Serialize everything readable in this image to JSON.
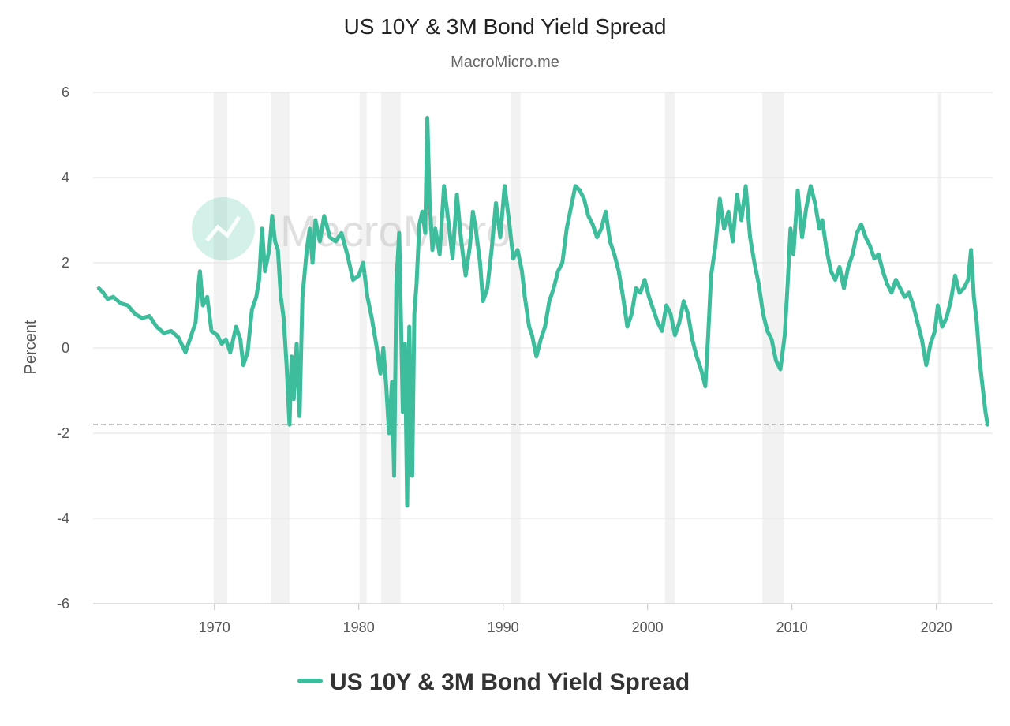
{
  "chart_data": {
    "type": "line",
    "title": "US 10Y & 3M Bond Yield Spread",
    "subtitle": "MacroMicro.me",
    "watermark": "MacroMicro",
    "ylabel": "Percent",
    "xlabel": "",
    "ylim": [
      -6,
      6
    ],
    "xlim": [
      1961.6,
      2023.9
    ],
    "yticks": [
      "6",
      "4",
      "2",
      "0",
      "-2",
      "-4",
      "-6"
    ],
    "xticks": [
      "1970",
      "1980",
      "1990",
      "2000",
      "2010",
      "2020"
    ],
    "grid": true,
    "legend_position": "bottom-center",
    "reference_line": -1.8,
    "recessions": [
      [
        1969.95,
        1970.9
      ],
      [
        1973.9,
        1975.2
      ],
      [
        1980.05,
        1980.55
      ],
      [
        1981.55,
        1982.9
      ],
      [
        1990.55,
        1991.2
      ],
      [
        2001.2,
        2001.9
      ],
      [
        2007.95,
        2009.45
      ],
      [
        2020.1,
        2020.35
      ]
    ],
    "colors": {
      "series": "#3dbd9b",
      "recession": "#f2f2f2",
      "grid": "#e6e6e6",
      "reference": "#888888"
    },
    "series": [
      {
        "name": "US 10Y & 3M Bond Yield Spread",
        "points": [
          [
            1962.0,
            1.4
          ],
          [
            1962.3,
            1.3
          ],
          [
            1962.6,
            1.15
          ],
          [
            1963.0,
            1.2
          ],
          [
            1963.5,
            1.05
          ],
          [
            1964.0,
            1.0
          ],
          [
            1964.5,
            0.8
          ],
          [
            1965.0,
            0.7
          ],
          [
            1965.5,
            0.75
          ],
          [
            1966.0,
            0.5
          ],
          [
            1966.5,
            0.35
          ],
          [
            1967.0,
            0.4
          ],
          [
            1967.5,
            0.25
          ],
          [
            1968.0,
            -0.1
          ],
          [
            1968.3,
            0.2
          ],
          [
            1968.7,
            0.6
          ],
          [
            1968.9,
            1.5
          ],
          [
            1969.0,
            1.8
          ],
          [
            1969.2,
            1.0
          ],
          [
            1969.5,
            1.2
          ],
          [
            1969.8,
            0.4
          ],
          [
            1970.2,
            0.3
          ],
          [
            1970.5,
            0.1
          ],
          [
            1970.8,
            0.2
          ],
          [
            1971.1,
            -0.1
          ],
          [
            1971.5,
            0.5
          ],
          [
            1971.8,
            0.2
          ],
          [
            1972.0,
            -0.4
          ],
          [
            1972.3,
            -0.1
          ],
          [
            1972.6,
            0.9
          ],
          [
            1972.9,
            1.2
          ],
          [
            1973.1,
            1.6
          ],
          [
            1973.3,
            2.8
          ],
          [
            1973.5,
            1.8
          ],
          [
            1973.8,
            2.3
          ],
          [
            1974.0,
            3.1
          ],
          [
            1974.2,
            2.5
          ],
          [
            1974.4,
            2.3
          ],
          [
            1974.6,
            1.2
          ],
          [
            1974.8,
            0.7
          ],
          [
            1975.0,
            -0.4
          ],
          [
            1975.2,
            -1.8
          ],
          [
            1975.35,
            -0.2
          ],
          [
            1975.5,
            -1.2
          ],
          [
            1975.7,
            0.1
          ],
          [
            1975.9,
            -1.6
          ],
          [
            1976.1,
            1.2
          ],
          [
            1976.4,
            2.3
          ],
          [
            1976.6,
            2.8
          ],
          [
            1976.8,
            2.0
          ],
          [
            1977.0,
            3.0
          ],
          [
            1977.3,
            2.5
          ],
          [
            1977.6,
            3.1
          ],
          [
            1978.0,
            2.6
          ],
          [
            1978.4,
            2.5
          ],
          [
            1978.8,
            2.7
          ],
          [
            1979.2,
            2.2
          ],
          [
            1979.6,
            1.6
          ],
          [
            1980.0,
            1.7
          ],
          [
            1980.3,
            2.0
          ],
          [
            1980.6,
            1.2
          ],
          [
            1980.9,
            0.7
          ],
          [
            1981.2,
            0.1
          ],
          [
            1981.5,
            -0.6
          ],
          [
            1981.7,
            0.0
          ],
          [
            1981.9,
            -0.9
          ],
          [
            1982.1,
            -2.0
          ],
          [
            1982.3,
            -0.8
          ],
          [
            1982.45,
            -3.0
          ],
          [
            1982.6,
            1.5
          ],
          [
            1982.8,
            2.7
          ],
          [
            1982.95,
            0.2
          ],
          [
            1983.05,
            -1.5
          ],
          [
            1983.2,
            0.1
          ],
          [
            1983.35,
            -3.7
          ],
          [
            1983.5,
            0.5
          ],
          [
            1983.7,
            -3.0
          ],
          [
            1983.85,
            0.8
          ],
          [
            1984.0,
            1.5
          ],
          [
            1984.2,
            2.9
          ],
          [
            1984.4,
            3.2
          ],
          [
            1984.6,
            2.7
          ],
          [
            1984.75,
            5.4
          ],
          [
            1984.9,
            3.5
          ],
          [
            1985.1,
            2.3
          ],
          [
            1985.3,
            2.8
          ],
          [
            1985.6,
            2.2
          ],
          [
            1985.9,
            3.8
          ],
          [
            1986.2,
            3.0
          ],
          [
            1986.5,
            2.1
          ],
          [
            1986.8,
            3.6
          ],
          [
            1987.1,
            2.5
          ],
          [
            1987.4,
            1.7
          ],
          [
            1987.7,
            2.4
          ],
          [
            1987.9,
            3.2
          ],
          [
            1988.1,
            2.8
          ],
          [
            1988.4,
            2.0
          ],
          [
            1988.6,
            1.1
          ],
          [
            1988.9,
            1.4
          ],
          [
            1989.2,
            2.3
          ],
          [
            1989.5,
            3.4
          ],
          [
            1989.8,
            2.6
          ],
          [
            1990.1,
            3.8
          ],
          [
            1990.4,
            3.0
          ],
          [
            1990.7,
            2.1
          ],
          [
            1991.0,
            2.3
          ],
          [
            1991.3,
            1.8
          ],
          [
            1991.5,
            1.2
          ],
          [
            1991.8,
            0.5
          ],
          [
            1992.0,
            0.3
          ],
          [
            1992.3,
            -0.2
          ],
          [
            1992.6,
            0.2
          ],
          [
            1992.9,
            0.5
          ],
          [
            1993.2,
            1.1
          ],
          [
            1993.5,
            1.4
          ],
          [
            1993.8,
            1.8
          ],
          [
            1994.1,
            2.0
          ],
          [
            1994.4,
            2.8
          ],
          [
            1994.7,
            3.3
          ],
          [
            1995.0,
            3.8
          ],
          [
            1995.3,
            3.7
          ],
          [
            1995.6,
            3.5
          ],
          [
            1995.9,
            3.1
          ],
          [
            1996.2,
            2.9
          ],
          [
            1996.5,
            2.6
          ],
          [
            1996.8,
            2.8
          ],
          [
            1997.1,
            3.2
          ],
          [
            1997.4,
            2.5
          ],
          [
            1997.7,
            2.2
          ],
          [
            1998.0,
            1.8
          ],
          [
            1998.3,
            1.2
          ],
          [
            1998.6,
            0.5
          ],
          [
            1998.9,
            0.8
          ],
          [
            1999.2,
            1.4
          ],
          [
            1999.5,
            1.3
          ],
          [
            1999.8,
            1.6
          ],
          [
            2000.1,
            1.2
          ],
          [
            2000.4,
            0.9
          ],
          [
            2000.7,
            0.6
          ],
          [
            2001.0,
            0.4
          ],
          [
            2001.3,
            1.0
          ],
          [
            2001.6,
            0.8
          ],
          [
            2001.9,
            0.3
          ],
          [
            2002.2,
            0.6
          ],
          [
            2002.5,
            1.1
          ],
          [
            2002.8,
            0.8
          ],
          [
            2003.1,
            0.2
          ],
          [
            2003.4,
            -0.2
          ],
          [
            2003.7,
            -0.5
          ],
          [
            2004.0,
            -0.9
          ],
          [
            2004.2,
            0.3
          ],
          [
            2004.4,
            1.7
          ],
          [
            2004.7,
            2.4
          ],
          [
            2005.0,
            3.5
          ],
          [
            2005.3,
            2.8
          ],
          [
            2005.6,
            3.2
          ],
          [
            2005.9,
            2.5
          ],
          [
            2006.2,
            3.6
          ],
          [
            2006.5,
            3.0
          ],
          [
            2006.8,
            3.8
          ],
          [
            2007.1,
            2.6
          ],
          [
            2007.4,
            2.0
          ],
          [
            2007.7,
            1.5
          ],
          [
            2008.0,
            0.8
          ],
          [
            2008.3,
            0.4
          ],
          [
            2008.6,
            0.2
          ],
          [
            2008.9,
            -0.3
          ],
          [
            2009.2,
            -0.5
          ],
          [
            2009.5,
            0.3
          ],
          [
            2009.7,
            1.5
          ],
          [
            2009.9,
            2.8
          ],
          [
            2010.1,
            2.2
          ],
          [
            2010.4,
            3.7
          ],
          [
            2010.7,
            2.6
          ],
          [
            2011.0,
            3.3
          ],
          [
            2011.3,
            3.8
          ],
          [
            2011.6,
            3.4
          ],
          [
            2011.9,
            2.8
          ],
          [
            2012.1,
            3.0
          ],
          [
            2012.4,
            2.3
          ],
          [
            2012.7,
            1.8
          ],
          [
            2013.0,
            1.6
          ],
          [
            2013.3,
            1.9
          ],
          [
            2013.6,
            1.4
          ],
          [
            2013.9,
            1.9
          ],
          [
            2014.2,
            2.2
          ],
          [
            2014.5,
            2.7
          ],
          [
            2014.8,
            2.9
          ],
          [
            2015.1,
            2.6
          ],
          [
            2015.4,
            2.4
          ],
          [
            2015.7,
            2.1
          ],
          [
            2016.0,
            2.2
          ],
          [
            2016.3,
            1.8
          ],
          [
            2016.6,
            1.5
          ],
          [
            2016.9,
            1.3
          ],
          [
            2017.2,
            1.6
          ],
          [
            2017.5,
            1.4
          ],
          [
            2017.8,
            1.2
          ],
          [
            2018.1,
            1.3
          ],
          [
            2018.4,
            1.0
          ],
          [
            2018.7,
            0.6
          ],
          [
            2019.0,
            0.2
          ],
          [
            2019.3,
            -0.4
          ],
          [
            2019.6,
            0.1
          ],
          [
            2019.9,
            0.4
          ],
          [
            2020.1,
            1.0
          ],
          [
            2020.4,
            0.5
          ],
          [
            2020.7,
            0.7
          ],
          [
            2021.0,
            1.1
          ],
          [
            2021.3,
            1.7
          ],
          [
            2021.6,
            1.3
          ],
          [
            2021.9,
            1.4
          ],
          [
            2022.2,
            1.6
          ],
          [
            2022.4,
            2.3
          ],
          [
            2022.6,
            1.2
          ],
          [
            2022.8,
            0.6
          ],
          [
            2023.0,
            -0.3
          ],
          [
            2023.2,
            -0.9
          ],
          [
            2023.4,
            -1.5
          ],
          [
            2023.55,
            -1.8
          ]
        ]
      }
    ]
  }
}
